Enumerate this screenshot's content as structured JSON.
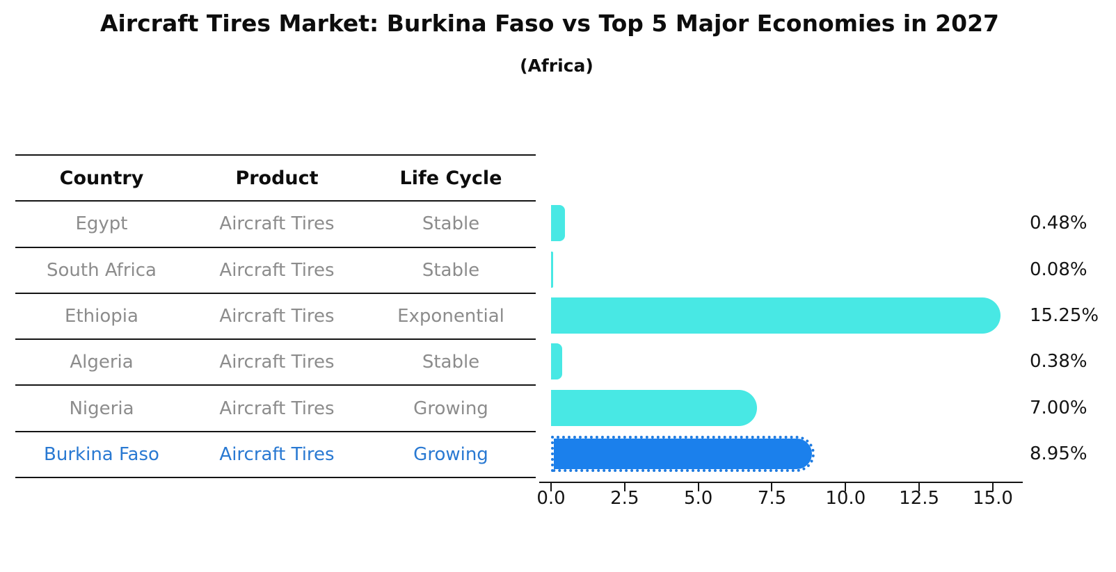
{
  "title": "Aircraft Tires Market: Burkina Faso vs Top 5 Major Economies in 2027",
  "subtitle": "(Africa)",
  "table": {
    "headers": [
      "Country",
      "Product",
      "Life Cycle"
    ],
    "rows": [
      {
        "country": "Egypt",
        "product": "Aircraft Tires",
        "life_cycle": "Stable",
        "highlight": false
      },
      {
        "country": "South Africa",
        "product": "Aircraft Tires",
        "life_cycle": "Stable",
        "highlight": false
      },
      {
        "country": "Ethiopia",
        "product": "Aircraft Tires",
        "life_cycle": "Exponential",
        "highlight": false
      },
      {
        "country": "Algeria",
        "product": "Aircraft Tires",
        "life_cycle": "Stable",
        "highlight": false
      },
      {
        "country": "Nigeria",
        "product": "Aircraft Tires",
        "life_cycle": "Growing",
        "highlight": false
      },
      {
        "country": "Burkina Faso",
        "product": "Aircraft Tires",
        "life_cycle": "Growing",
        "highlight": true
      }
    ]
  },
  "chart_data": {
    "type": "bar",
    "orientation": "horizontal",
    "title": "Aircraft Tires Market: Burkina Faso vs Top 5 Major Economies in 2027",
    "subtitle": "(Africa)",
    "categories": [
      "Egypt",
      "South Africa",
      "Ethiopia",
      "Algeria",
      "Nigeria",
      "Burkina Faso"
    ],
    "values": [
      0.48,
      0.08,
      15.25,
      0.38,
      7.0,
      8.95
    ],
    "value_labels": [
      "0.48%",
      "0.08%",
      "15.25%",
      "0.38%",
      "7.00%",
      "8.95%"
    ],
    "x_ticks": [
      0.0,
      2.5,
      5.0,
      7.5,
      10.0,
      12.5,
      15.0
    ],
    "x_tick_labels": [
      "0.0",
      "2.5",
      "5.0",
      "7.5",
      "10.0",
      "12.5",
      "15.0"
    ],
    "xlim": [
      -0.4,
      16.0
    ],
    "grid": false,
    "legend": "none",
    "highlight_index": 5,
    "bar_color": "#48e8e4",
    "highlight_color": "#1b80ec"
  },
  "colors": {
    "bar_cyan": "#48e8e4",
    "bar_blue": "#1b80ec",
    "highlight_text": "#2979d2",
    "body_text": "#8c8c8c",
    "line_black": "#141414"
  }
}
